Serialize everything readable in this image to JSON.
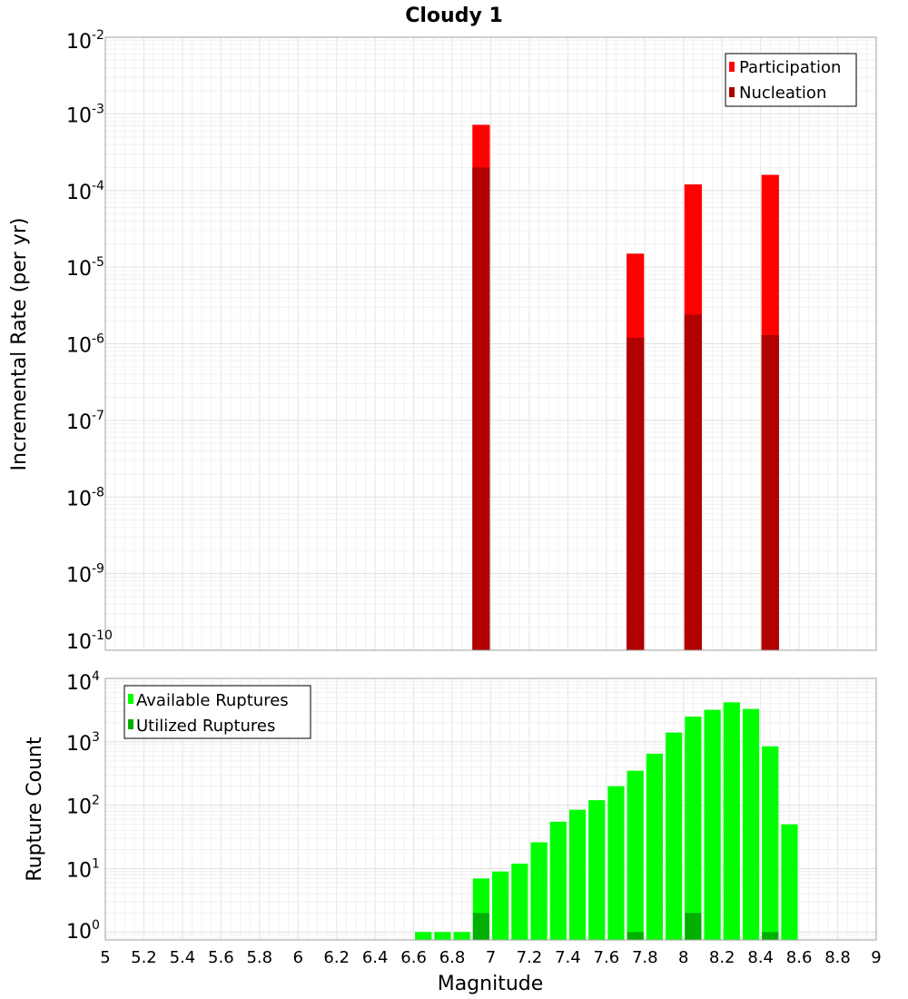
{
  "title": "Cloudy 1",
  "colors": {
    "participation": "#ff0000",
    "nucleation": "#b00000",
    "available": "#00ff00",
    "utilized": "#00b000",
    "grid": "#e6e6e6",
    "frame": "#a0a0a0"
  },
  "chart_data": [
    {
      "type": "bar",
      "title": "Cloudy 1",
      "xlabel": "Magnitude",
      "ylabel": "Incremental Rate (per yr)",
      "yscale": "log",
      "xlim": [
        5,
        9
      ],
      "ylim": [
        1e-10,
        0.01
      ],
      "grid": true,
      "legend_position": "top-right",
      "bin_width": 0.1,
      "ytick_exponents": [
        -10,
        -9,
        -8,
        -7,
        -6,
        -5,
        -4,
        -3,
        -2
      ],
      "series": [
        {
          "name": "Participation",
          "x": [
            6.95,
            7.75,
            8.05,
            8.45
          ],
          "values": [
            0.00072,
            1.5e-05,
            0.00012,
            0.00016
          ]
        },
        {
          "name": "Nucleation",
          "x": [
            6.95,
            7.75,
            8.05,
            8.45
          ],
          "values": [
            0.0002,
            1.2e-06,
            2.4e-06,
            1.3e-06
          ]
        }
      ]
    },
    {
      "type": "bar",
      "xlabel": "Magnitude",
      "ylabel": "Rupture Count",
      "yscale": "log",
      "xlim": [
        5,
        9
      ],
      "ylim": [
        0.75,
        10000
      ],
      "grid": true,
      "legend_position": "top-left",
      "bin_width": 0.1,
      "xticks": [
        "5",
        "5.2",
        "5.4",
        "5.6",
        "5.8",
        "6",
        "6.2",
        "6.4",
        "6.6",
        "6.8",
        "7",
        "7.2",
        "7.4",
        "7.6",
        "7.8",
        "8",
        "8.2",
        "8.4",
        "8.6",
        "8.8",
        "9"
      ],
      "ytick_exponents": [
        0,
        1,
        2,
        3,
        4
      ],
      "series": [
        {
          "name": "Available Ruptures",
          "x": [
            6.65,
            6.75,
            6.85,
            6.95,
            7.05,
            7.15,
            7.25,
            7.35,
            7.45,
            7.55,
            7.65,
            7.75,
            7.85,
            7.95,
            8.05,
            8.15,
            8.25,
            8.35,
            8.45,
            8.55
          ],
          "values": [
            1,
            1,
            1,
            7,
            9,
            12,
            26,
            55,
            85,
            120,
            200,
            350,
            650,
            1400,
            2500,
            3200,
            4200,
            3300,
            850,
            50
          ]
        },
        {
          "name": "Utilized Ruptures",
          "x": [
            6.95,
            7.75,
            8.05,
            8.45
          ],
          "values": [
            2,
            1,
            2,
            1
          ]
        }
      ]
    }
  ]
}
